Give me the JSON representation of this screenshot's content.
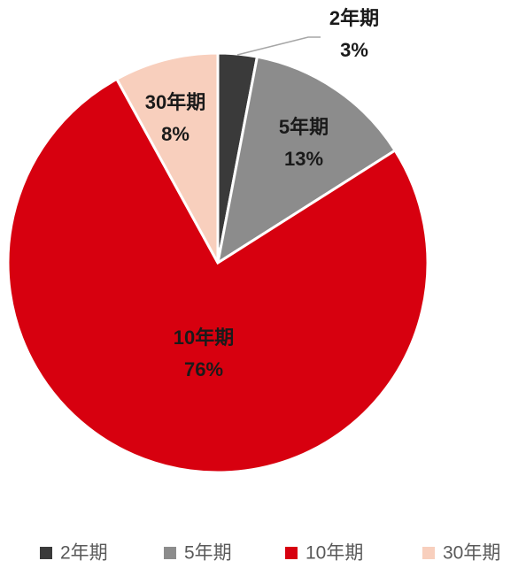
{
  "chart_data": {
    "type": "pie",
    "categories": [
      "2年期",
      "5年期",
      "10年期",
      "30年期"
    ],
    "values": [
      3,
      13,
      76,
      8
    ],
    "value_labels": [
      "3%",
      "13%",
      "76%",
      "8%"
    ],
    "colors": [
      "#3a3a3a",
      "#8c8c8c",
      "#d7000f",
      "#f8cfbd"
    ],
    "legend": "bottom"
  }
}
